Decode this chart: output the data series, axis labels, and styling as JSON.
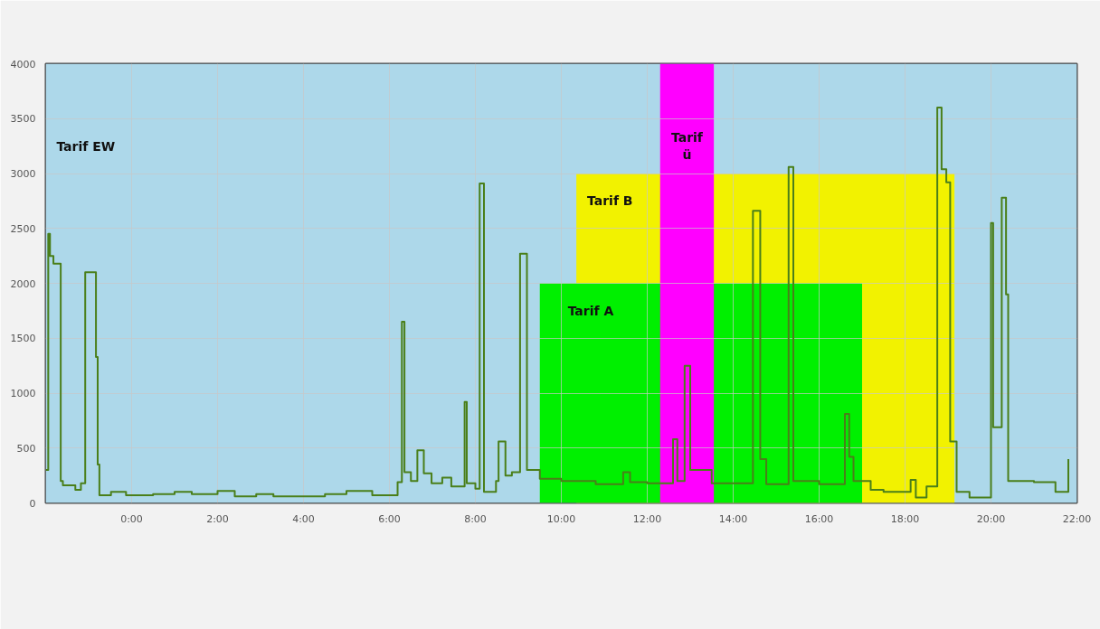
{
  "chart_data": {
    "type": "step",
    "xlim": [
      -2,
      22
    ],
    "ylim": [
      0,
      4000
    ],
    "xticks": [
      {
        "value": 0,
        "label": "0:00"
      },
      {
        "value": 2,
        "label": "2:00"
      },
      {
        "value": 4,
        "label": "4:00"
      },
      {
        "value": 6,
        "label": "6:00"
      },
      {
        "value": 8,
        "label": "8:00"
      },
      {
        "value": 10,
        "label": "10:00"
      },
      {
        "value": 12,
        "label": "12:00"
      },
      {
        "value": 14,
        "label": "14:00"
      },
      {
        "value": 16,
        "label": "16:00"
      },
      {
        "value": 18,
        "label": "18:00"
      },
      {
        "value": 20,
        "label": "20:00"
      },
      {
        "value": 22,
        "label": "22:00"
      }
    ],
    "yticks": [
      0,
      500,
      1000,
      1500,
      2000,
      2500,
      3000,
      3500,
      4000
    ],
    "grid": true,
    "bands": [
      {
        "axis": "x",
        "from": -2,
        "to": 22,
        "label": "Tarif EW",
        "color": "#add8ea"
      },
      {
        "axis": "x",
        "from": 12.3,
        "to": 13.55,
        "label": "Tarif ü",
        "color": "#ff00ff"
      }
    ],
    "series": [
      {
        "name": "Tarif B",
        "type": "area",
        "color": "#f2f200",
        "x": [
          10.35,
          19.15
        ],
        "values": [
          3000,
          3000
        ]
      },
      {
        "name": "Tarif A",
        "type": "area",
        "color": "#00f000",
        "x": [
          9.5,
          17
        ],
        "values": [
          2000,
          2000
        ]
      },
      {
        "color": "#4a7f1a",
        "x": [
          -2,
          -1.94,
          -1.9,
          -1.82,
          -1.65,
          -1.6,
          -1.31,
          -1.18,
          -1.08,
          -0.83,
          -0.79,
          -0.75,
          -0.48,
          -0.13,
          0.5,
          1,
          1.4,
          2,
          2.4,
          2.9,
          3.3,
          3.8,
          4.5,
          5,
          5.6,
          6.19,
          6.29,
          6.35,
          6.5,
          6.65,
          6.8,
          6.98,
          7.23,
          7.44,
          7.75,
          7.8,
          8.0,
          8.1,
          8.2,
          8.48,
          8.54,
          8.7,
          8.85,
          9.04,
          9.2,
          9.5,
          10,
          10.8,
          11.44,
          11.6,
          12,
          12.6,
          12.7,
          12.87,
          13.0,
          13.5,
          14.46,
          14.63,
          14.77,
          15.29,
          15.4,
          16.0,
          16.6,
          16.7,
          16.8,
          17.2,
          17.5,
          18.13,
          18.25,
          18.5,
          18.75,
          18.85,
          18.96,
          19.05,
          19.2,
          19.5,
          20.0,
          20.05,
          20.25,
          20.35,
          20.4,
          21.0,
          21.5,
          21.8
        ],
        "values": [
          300,
          2450,
          2250,
          2180,
          200,
          160,
          120,
          180,
          2100,
          1330,
          350,
          70,
          100,
          70,
          80,
          100,
          80,
          110,
          60,
          80,
          60,
          60,
          80,
          110,
          70,
          190,
          1650,
          280,
          200,
          480,
          270,
          180,
          230,
          150,
          920,
          180,
          130,
          2910,
          100,
          200,
          560,
          250,
          280,
          2270,
          300,
          220,
          200,
          170,
          280,
          190,
          180,
          580,
          200,
          1250,
          300,
          180,
          2660,
          400,
          170,
          3060,
          200,
          170,
          810,
          420,
          200,
          120,
          100,
          210,
          50,
          150,
          3600,
          3040,
          2920,
          560,
          100,
          50,
          2550,
          690,
          2780,
          1900,
          200,
          190,
          100,
          400
        ]
      }
    ]
  }
}
